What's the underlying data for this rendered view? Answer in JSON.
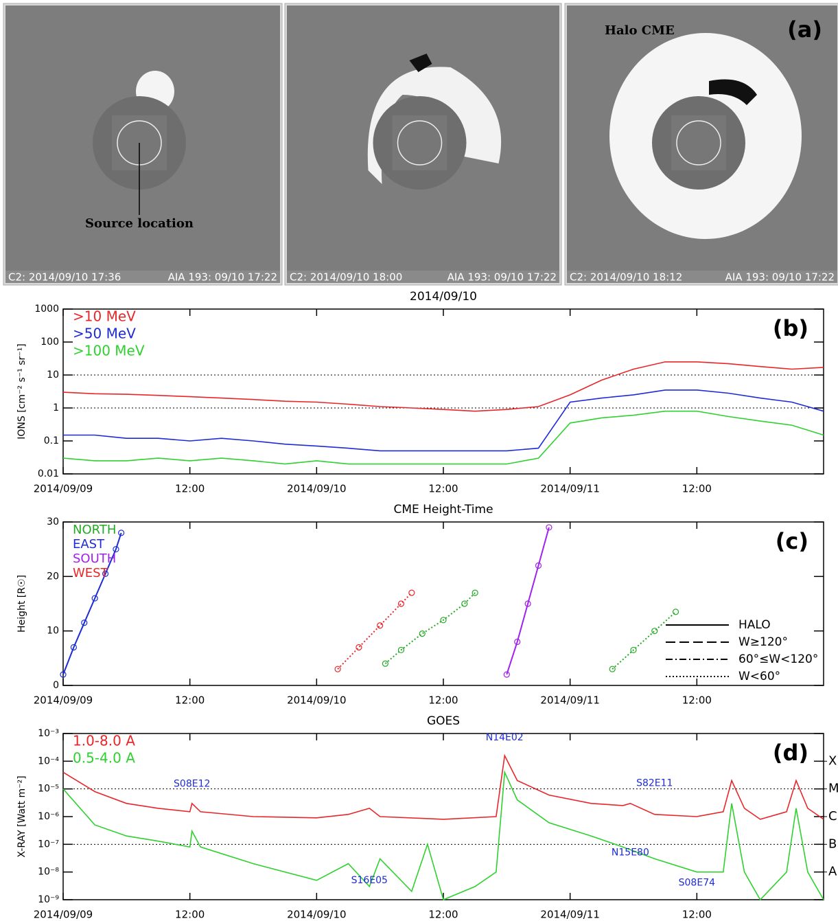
{
  "panel_a": {
    "label": "(a)",
    "images": [
      {
        "left_caption": "C2: 2014/09/10 17:36",
        "right_caption": "AIA 193: 09/10 17:22",
        "annotation": "Source location"
      },
      {
        "left_caption": "C2: 2014/09/10 18:00",
        "right_caption": "AIA 193: 09/10 17:22"
      },
      {
        "left_caption": "C2: 2014/09/10 18:12",
        "right_caption": "AIA 193: 09/10 17:22",
        "annotation": "Halo CME"
      }
    ]
  },
  "chart_data": [
    {
      "type": "line",
      "title": "2014/09/10",
      "panel_label": "(b)",
      "ylabel": "IONS [cm⁻² s⁻¹ sr⁻¹]",
      "log_y": true,
      "ylim": [
        0.01,
        1000
      ],
      "yticks": [
        0.01,
        0.1,
        1,
        10,
        100,
        1000
      ],
      "reference_lines": [
        1,
        10
      ],
      "legend": "top-left",
      "xlim": [
        "2014-09-09T00:00",
        "2014-09-12T00:00"
      ],
      "xticks": [
        {
          "value": "2014-09-09T00:00",
          "label": "2014/09/09"
        },
        {
          "value": "2014-09-09T12:00",
          "label": "12:00"
        },
        {
          "value": "2014-09-10T00:00",
          "label": "2014/09/10"
        },
        {
          "value": "2014-09-10T12:00",
          "label": "12:00"
        },
        {
          "value": "2014-09-11T00:00",
          "label": "2014/09/11"
        },
        {
          "value": "2014-09-11T12:00",
          "label": "12:00"
        }
      ],
      "x": [
        "2014-09-09T00:00",
        "2014-09-09T03:00",
        "2014-09-09T06:00",
        "2014-09-09T09:00",
        "2014-09-09T12:00",
        "2014-09-09T15:00",
        "2014-09-09T18:00",
        "2014-09-09T21:00",
        "2014-09-10T00:00",
        "2014-09-10T03:00",
        "2014-09-10T06:00",
        "2014-09-10T09:00",
        "2014-09-10T12:00",
        "2014-09-10T15:00",
        "2014-09-10T18:00",
        "2014-09-10T21:00",
        "2014-09-11T00:00",
        "2014-09-11T03:00",
        "2014-09-11T06:00",
        "2014-09-11T09:00",
        "2014-09-11T12:00",
        "2014-09-11T15:00",
        "2014-09-11T18:00",
        "2014-09-11T21:00",
        "2014-09-12T00:00"
      ],
      "series": [
        {
          "name": ">10 MeV",
          "color": "#e8262a",
          "values": [
            3,
            2.7,
            2.6,
            2.4,
            2.2,
            2.0,
            1.8,
            1.6,
            1.5,
            1.3,
            1.1,
            1.0,
            0.9,
            0.8,
            0.9,
            1.1,
            2.5,
            7,
            15,
            25,
            25,
            22,
            18,
            15,
            17
          ]
        },
        {
          "name": ">50 MeV",
          "color": "#1c2bd6",
          "values": [
            0.15,
            0.15,
            0.12,
            0.12,
            0.1,
            0.12,
            0.1,
            0.08,
            0.07,
            0.06,
            0.05,
            0.05,
            0.05,
            0.05,
            0.05,
            0.06,
            1.5,
            2,
            2.5,
            3.5,
            3.5,
            2.8,
            2,
            1.5,
            0.8
          ]
        },
        {
          "name": ">100 MeV",
          "color": "#2ed12e",
          "values": [
            0.03,
            0.025,
            0.025,
            0.03,
            0.025,
            0.03,
            0.025,
            0.02,
            0.025,
            0.02,
            0.02,
            0.02,
            0.02,
            0.02,
            0.02,
            0.03,
            0.35,
            0.5,
            0.6,
            0.8,
            0.8,
            0.55,
            0.4,
            0.3,
            0.15
          ]
        }
      ]
    },
    {
      "type": "scatter",
      "title": "CME Height-Time",
      "panel_label": "(c)",
      "ylabel": "Height [R☉]",
      "ylim": [
        0,
        30
      ],
      "yticks": [
        0,
        10,
        20,
        30
      ],
      "legend": "top-left",
      "xlim": [
        "2014-09-09T00:00",
        "2014-09-12T00:00"
      ],
      "xticks": [
        {
          "value": "2014-09-09T00:00",
          "label": "2014/09/09"
        },
        {
          "value": "2014-09-09T12:00",
          "label": "12:00"
        },
        {
          "value": "2014-09-10T00:00",
          "label": "2014/09/10"
        },
        {
          "value": "2014-09-10T12:00",
          "label": "12:00"
        },
        {
          "value": "2014-09-11T00:00",
          "label": "2014/09/11"
        },
        {
          "value": "2014-09-11T12:00",
          "label": "12:00"
        }
      ],
      "style_legend": [
        {
          "label": "HALO",
          "dash": "solid"
        },
        {
          "label": "W≥120°",
          "dash": "dashed"
        },
        {
          "label": "60°≤W<120°",
          "dash": "dashdot"
        },
        {
          "label": "W<60°",
          "dash": "dotted"
        }
      ],
      "series": [
        {
          "name": "NORTH",
          "color": "#22aa22",
          "dash": "dotted",
          "x": [
            "2014-09-10T06:30",
            "2014-09-10T08:00",
            "2014-09-10T10:00",
            "2014-09-10T12:00",
            "2014-09-10T14:00",
            "2014-09-10T15:00",
            null,
            "2014-09-11T04:00",
            "2014-09-11T06:00",
            "2014-09-11T08:00",
            "2014-09-11T10:00"
          ],
          "values": [
            4,
            6.5,
            9.5,
            12,
            15,
            17,
            null,
            3,
            6.5,
            10,
            13.5
          ]
        },
        {
          "name": "EAST",
          "color": "#1c2bd6",
          "dash": "solid",
          "x": [
            "2014-09-09T00:00",
            "2014-09-09T01:00",
            "2014-09-09T02:00",
            "2014-09-09T03:00",
            "2014-09-09T04:00",
            "2014-09-09T05:00",
            "2014-09-09T05:30"
          ],
          "values": [
            2,
            7,
            11.5,
            16,
            20.5,
            25,
            28
          ]
        },
        {
          "name": "SOUTH",
          "color": "#a020f0",
          "dash": "solid",
          "x": [
            "2014-09-10T18:00",
            "2014-09-10T19:00",
            "2014-09-10T20:00",
            "2014-09-10T21:00",
            "2014-09-10T22:00"
          ],
          "values": [
            2,
            8,
            15,
            22,
            29
          ]
        },
        {
          "name": "WEST",
          "color": "#e8262a",
          "dash": "dotted",
          "x": [
            "2014-09-10T02:00",
            "2014-09-10T04:00",
            "2014-09-10T06:00",
            "2014-09-10T08:00",
            "2014-09-10T09:00"
          ],
          "values": [
            3,
            7,
            11,
            15,
            17
          ]
        }
      ]
    },
    {
      "type": "line",
      "title": "GOES",
      "panel_label": "(d)",
      "ylabel": "X-RAY [Watt m⁻²]",
      "log_y": true,
      "ylim": [
        1e-09,
        0.001
      ],
      "legend": "top-left",
      "reference_lines": [
        1e-07,
        1e-05
      ],
      "yticks": [
        {
          "value": 1e-09,
          "label": "10⁻⁹"
        },
        {
          "value": 1e-08,
          "label": "10⁻⁸"
        },
        {
          "value": 1e-07,
          "label": "10⁻⁷"
        },
        {
          "value": 1e-06,
          "label": "10⁻⁶"
        },
        {
          "value": 1e-05,
          "label": "10⁻⁵"
        },
        {
          "value": 0.0001,
          "label": "10⁻⁴"
        },
        {
          "value": 0.001,
          "label": "10⁻³"
        }
      ],
      "y2ticks": [
        {
          "value": 1e-08,
          "label": "A"
        },
        {
          "value": 1e-07,
          "label": "B"
        },
        {
          "value": 1e-06,
          "label": "C"
        },
        {
          "value": 1e-05,
          "label": "M"
        },
        {
          "value": 0.0001,
          "label": "X"
        }
      ],
      "xlim": [
        "2014-09-09T00:00",
        "2014-09-12T00:00"
      ],
      "xticks": [
        {
          "value": "2014-09-09T00:00",
          "label": "2014/09/09"
        },
        {
          "value": "2014-09-09T12:00",
          "label": "12:00"
        },
        {
          "value": "2014-09-10T00:00",
          "label": "2014/09/10"
        },
        {
          "value": "2014-09-10T12:00",
          "label": "12:00"
        },
        {
          "value": "2014-09-11T00:00",
          "label": "2014/09/11"
        },
        {
          "value": "2014-09-11T12:00",
          "label": "12:00"
        }
      ],
      "series": [
        {
          "name": "1.0-8.0 A",
          "color": "#e8262a",
          "x": [
            "2014-09-09T00:00",
            "2014-09-09T03:00",
            "2014-09-09T06:00",
            "2014-09-09T09:00",
            "2014-09-09T12:00",
            "2014-09-09T12:12",
            "2014-09-09T13:00",
            "2014-09-09T18:00",
            "2014-09-10T00:00",
            "2014-09-10T03:00",
            "2014-09-10T05:00",
            "2014-09-10T06:00",
            "2014-09-10T12:00",
            "2014-09-10T17:00",
            "2014-09-10T17:48",
            "2014-09-10T19:00",
            "2014-09-10T22:00",
            "2014-09-11T02:00",
            "2014-09-11T05:00",
            "2014-09-11T05:42",
            "2014-09-11T08:00",
            "2014-09-11T12:00",
            "2014-09-11T14:30",
            "2014-09-11T15:18",
            "2014-09-11T16:30",
            "2014-09-11T18:00",
            "2014-09-11T20:30",
            "2014-09-11T21:24",
            "2014-09-11T22:30",
            "2014-09-12T00:00"
          ],
          "values": [
            4e-05,
            8e-06,
            3e-06,
            2e-06,
            1.5e-06,
            3e-06,
            1.5e-06,
            1e-06,
            9e-07,
            1.2e-06,
            2e-06,
            1e-06,
            8e-07,
            1e-06,
            0.00016,
            2e-05,
            6e-06,
            3e-06,
            2.5e-06,
            3e-06,
            1.2e-06,
            1e-06,
            1.5e-06,
            2e-05,
            2e-06,
            8e-07,
            1.5e-06,
            2e-05,
            2e-06,
            8e-07
          ]
        },
        {
          "name": "0.5-4.0 A",
          "color": "#2ed12e",
          "x": [
            "2014-09-09T00:00",
            "2014-09-09T03:00",
            "2014-09-09T06:00",
            "2014-09-09T09:00",
            "2014-09-09T12:00",
            "2014-09-09T12:12",
            "2014-09-09T13:00",
            "2014-09-09T18:00",
            "2014-09-10T00:00",
            "2014-09-10T03:00",
            "2014-09-10T05:00",
            "2014-09-10T06:00",
            "2014-09-10T09:00",
            "2014-09-10T10:30",
            "2014-09-10T12:00",
            "2014-09-10T15:00",
            "2014-09-10T17:00",
            "2014-09-10T17:48",
            "2014-09-10T19:00",
            "2014-09-10T22:00",
            "2014-09-11T02:00",
            "2014-09-11T05:00",
            "2014-09-11T08:00",
            "2014-09-11T12:00",
            "2014-09-11T14:30",
            "2014-09-11T15:18",
            "2014-09-11T16:30",
            "2014-09-11T18:00",
            "2014-09-11T20:30",
            "2014-09-11T21:24",
            "2014-09-11T22:30",
            "2014-09-12T00:00"
          ],
          "values": [
            1e-05,
            5e-07,
            2e-07,
            1.3e-07,
            8e-08,
            3e-07,
            8e-08,
            2e-08,
            5e-09,
            2e-08,
            3e-09,
            3e-08,
            2e-09,
            1e-07,
            1e-09,
            3e-09,
            1e-08,
            4e-05,
            4e-06,
            6e-07,
            2e-07,
            8e-08,
            3e-08,
            1e-08,
            1e-08,
            3e-06,
            1e-08,
            1e-09,
            1e-08,
            2e-06,
            1e-08,
            1e-09
          ]
        }
      ],
      "annotations": [
        {
          "text": "S08E12",
          "x": "2014-09-09T12:12",
          "y": 1.5e-05
        },
        {
          "text": "S16E05",
          "x": "2014-09-10T05:00",
          "y": 5e-09
        },
        {
          "text": "N14E02",
          "x": "2014-09-10T17:48",
          "y": 0.0007
        },
        {
          "text": "N15E80",
          "x": "2014-09-11T05:42",
          "y": 5e-08
        },
        {
          "text": "S82E11",
          "x": "2014-09-11T08:00",
          "y": 1.6e-05
        },
        {
          "text": "S08E74",
          "x": "2014-09-11T12:00",
          "y": 4e-09
        }
      ]
    }
  ]
}
